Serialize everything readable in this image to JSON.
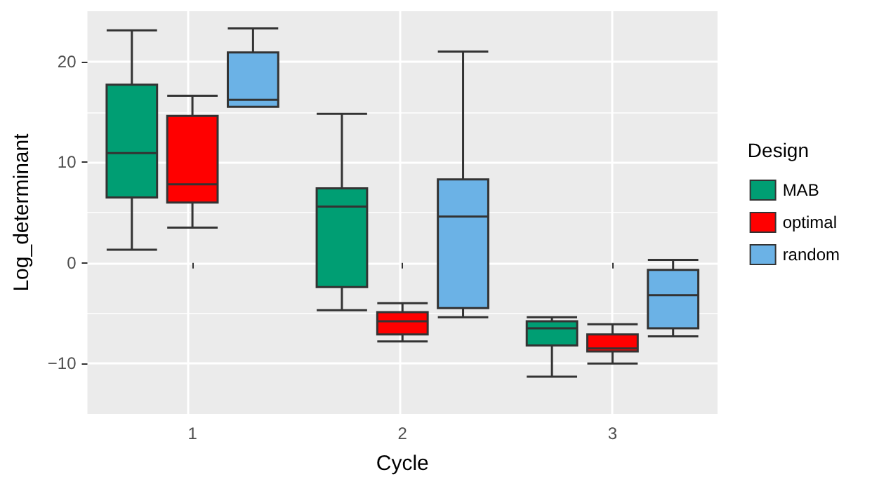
{
  "chart_data": {
    "type": "box",
    "xlabel": "Cycle",
    "ylabel": "Log_determinant",
    "legend_title": "Design",
    "categories": [
      "1",
      "2",
      "3"
    ],
    "series": [
      {
        "name": "MAB",
        "color": "#009e73",
        "boxes": [
          {
            "low": 1.3,
            "q1": 6.5,
            "median": 10.9,
            "q3": 17.7,
            "high": 23.1
          },
          {
            "low": -4.7,
            "q1": -2.4,
            "median": 5.6,
            "q3": 7.4,
            "high": 14.8
          },
          {
            "low": -11.3,
            "q1": -8.2,
            "median": -6.5,
            "q3": -5.8,
            "high": -5.4
          }
        ]
      },
      {
        "name": "optimal",
        "color": "#ff0000",
        "boxes": [
          {
            "low": 3.5,
            "q1": 6.0,
            "median": 7.8,
            "q3": 14.6,
            "high": 16.6
          },
          {
            "low": -7.8,
            "q1": -7.1,
            "median": -5.8,
            "q3": -4.9,
            "high": -4.0
          },
          {
            "low": -10.0,
            "q1": -8.8,
            "median": -8.5,
            "q3": -7.1,
            "high": -6.1
          }
        ]
      },
      {
        "name": "random",
        "color": "#6bb2e6",
        "boxes": [
          {
            "low": 15.5,
            "q1": 15.5,
            "median": 16.2,
            "q3": 20.9,
            "high": 23.3
          },
          {
            "low": -5.4,
            "q1": -4.5,
            "median": 4.6,
            "q3": 8.3,
            "high": 21.0
          },
          {
            "low": -7.3,
            "q1": -6.5,
            "median": -3.2,
            "q3": -0.7,
            "high": 0.3
          }
        ]
      }
    ],
    "ylim": [
      -15,
      25
    ],
    "yticks": [
      -10,
      0,
      10,
      20
    ],
    "grid": true,
    "legend": "right"
  }
}
